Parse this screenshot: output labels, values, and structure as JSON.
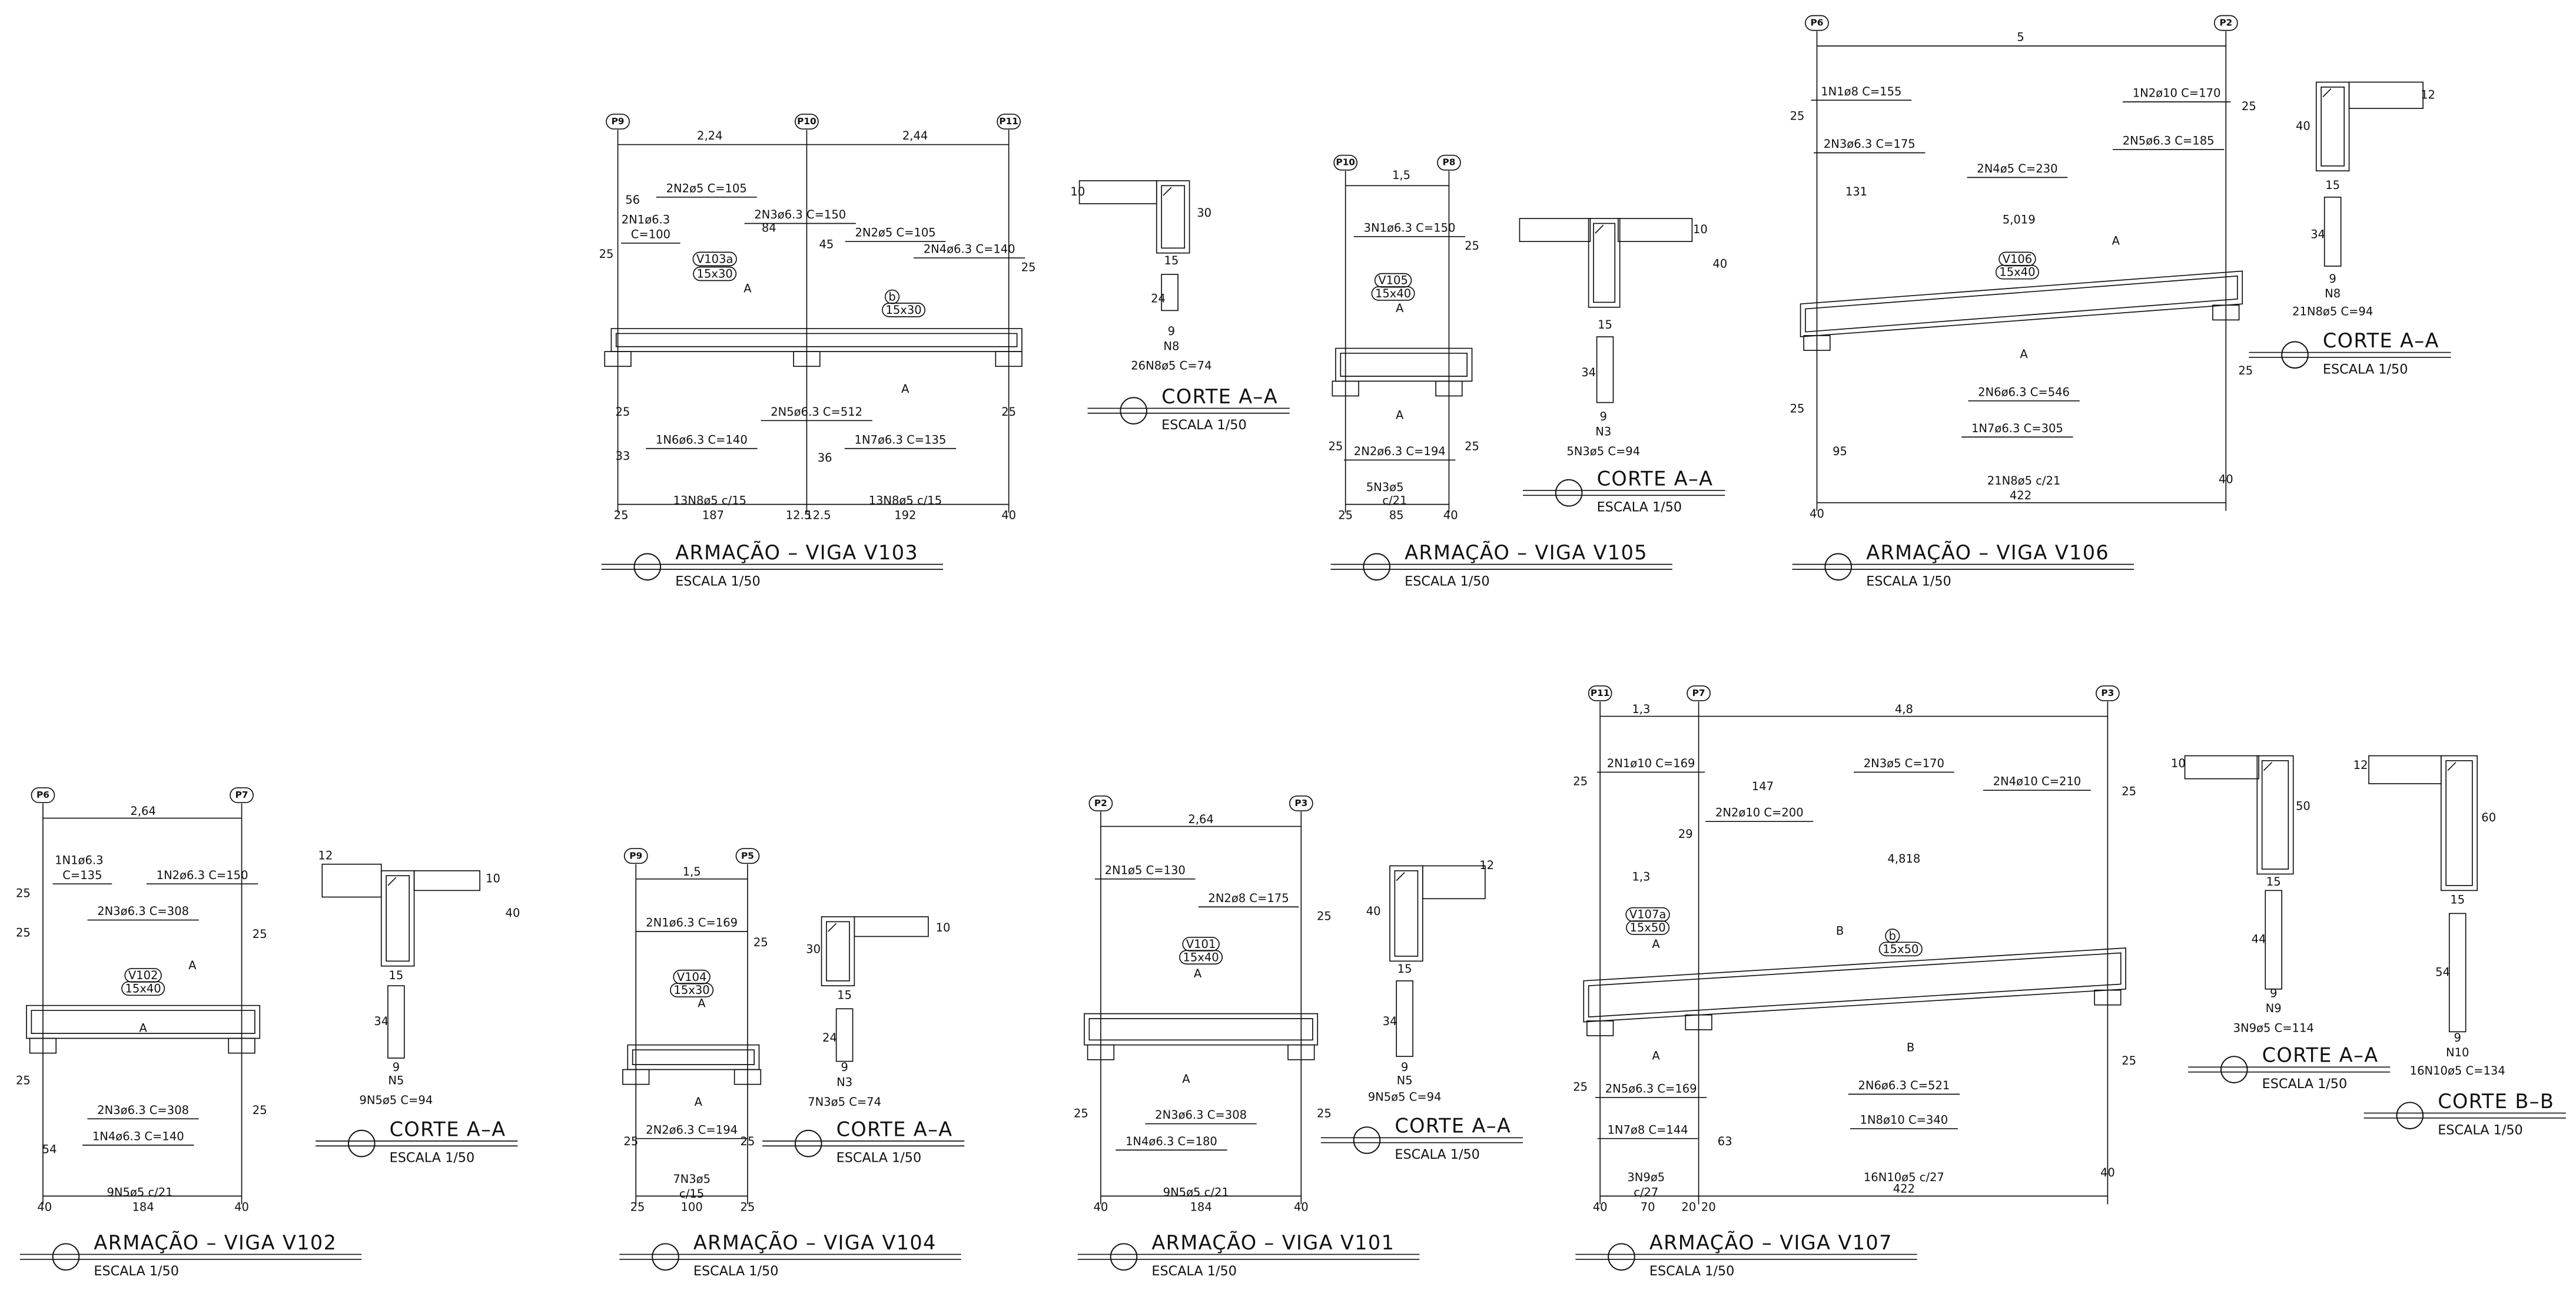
{
  "beams": [
    {
      "title": "ARMAÇÃO – VIGA V103",
      "scale": "ESCALA 1/50",
      "pillars": [
        "P9",
        "P10",
        "P11"
      ],
      "labels": [
        "2,24",
        "2,44",
        "56",
        "2N2ø5 C=105",
        "2N1ø6.3",
        "C=100",
        "2N3ø6.3 C=150",
        "84",
        "45",
        "2N2ø5 C=105",
        "2N4ø6.3 C=140",
        "25",
        "25",
        "V103a",
        "15x30",
        "A",
        "b",
        "15x30",
        "A",
        "25",
        "2N5ø6.3 C=512",
        "25",
        "1N6ø6.3 C=140",
        "1N7ø6.3 C=135",
        "33",
        "36",
        "13N8ø5 c/15",
        "13N8ø5 c/15",
        "25",
        "187",
        "12.5",
        "12.5",
        "192",
        "40"
      ]
    },
    {
      "title": "ARMAÇÃO – VIGA V105",
      "scale": "ESCALA 1/50",
      "pillars": [
        "P10",
        "P8"
      ],
      "labels": [
        "1,5",
        "3N1ø6.3 C=150",
        "25",
        "V105",
        "15x40",
        "A",
        "A",
        "2N2ø6.3 C=194",
        "25",
        "25",
        "5N3ø5",
        "c/21",
        "25",
        "85",
        "40"
      ]
    },
    {
      "title": "ARMAÇÃO – VIGA V106",
      "scale": "ESCALA 1/50",
      "pillars": [
        "P6",
        "P2"
      ],
      "labels": [
        "5",
        "1N1ø8 C=155",
        "1N2ø10 C=170",
        "25",
        "25",
        "2N3ø6.3 C=175",
        "2N5ø6.3 C=185",
        "2N4ø5 C=230",
        "131",
        "5,019",
        "A",
        "V106",
        "15x40",
        "A",
        "2N6ø6.3 C=546",
        "25",
        "25",
        "1N7ø6.3 C=305",
        "95",
        "21N8ø5 c/21",
        "40",
        "40",
        "422"
      ]
    },
    {
      "title": "ARMAÇÃO – VIGA V102",
      "scale": "ESCALA 1/50",
      "pillars": [
        "P6",
        "P7"
      ],
      "labels": [
        "2,64",
        "1N1ø6.3",
        "C=135",
        "1N2ø6.3 C=150",
        "25",
        "2N3ø6.3 C=308",
        "25",
        "25",
        "A",
        "V102",
        "15x40",
        "A",
        "25",
        "2N3ø6.3 C=308",
        "25",
        "54",
        "1N4ø6.3 C=140",
        "9N5ø5 c/21",
        "40",
        "184",
        "40"
      ]
    },
    {
      "title": "ARMAÇÃO – VIGA V104",
      "scale": "ESCALA 1/50",
      "pillars": [
        "P9",
        "P5"
      ],
      "labels": [
        "1,5",
        "2N1ø6.3 C=169",
        "25",
        "V104",
        "15x30",
        "A",
        "A",
        "2N2ø6.3 C=194",
        "25",
        "25",
        "7N3ø5",
        "c/15",
        "25",
        "100",
        "25"
      ]
    },
    {
      "title": "ARMAÇÃO – VIGA V101",
      "scale": "ESCALA 1/50",
      "pillars": [
        "P2",
        "P3"
      ],
      "labels": [
        "2,64",
        "2N1ø5 C=130",
        "2N2ø8 C=175",
        "25",
        "V101",
        "15x40",
        "A",
        "A",
        "25",
        "2N3ø6.3 C=308",
        "25",
        "1N4ø6.3 C=180",
        "9N5ø5 c/21",
        "40",
        "184",
        "40"
      ]
    },
    {
      "title": "ARMAÇÃO – VIGA V107",
      "scale": "ESCALA 1/50",
      "pillars": [
        "P11",
        "P7",
        "P3"
      ],
      "labels": [
        "1,3",
        "4,8",
        "2N1ø10 C=169",
        "147",
        "2N3ø5 C=170",
        "25",
        "2N4ø10 C=210",
        "25",
        "2N2ø10 C=200",
        "29",
        "1,3",
        "4,818",
        "V107a",
        "15x50",
        "A",
        "B",
        "b",
        "15x50",
        "B",
        "A",
        "25",
        "2N5ø6.3 C=169",
        "2N6ø6.3 C=521",
        "25",
        "1N7ø8 C=144",
        "1N8ø10 C=340",
        "63",
        "3N9ø5",
        "c/27",
        "16N10ø5 c/27",
        "40",
        "422",
        "40",
        "70",
        "20",
        "20"
      ]
    }
  ],
  "sections": [
    {
      "title": "CORTE A–A",
      "scale": "ESCALA 1/50",
      "labels": [
        "10",
        "30",
        "15",
        "24",
        "9",
        "N8",
        "26N8ø5 C=74"
      ]
    },
    {
      "title": "CORTE A–A",
      "scale": "ESCALA 1/50",
      "labels": [
        "10",
        "40",
        "15",
        "34",
        "9",
        "N3",
        "5N3ø5 C=94"
      ]
    },
    {
      "title": "CORTE A–A",
      "scale": "ESCALA 1/50",
      "labels": [
        "12",
        "40",
        "15",
        "34",
        "9",
        "N8",
        "21N8ø5 C=94"
      ]
    },
    {
      "title": "CORTE A–A",
      "scale": "ESCALA 1/50",
      "labels": [
        "12",
        "10",
        "40",
        "15",
        "34",
        "9",
        "N5",
        "9N5ø5 C=94"
      ]
    },
    {
      "title": "CORTE A–A",
      "scale": "ESCALA 1/50",
      "labels": [
        "30",
        "10",
        "15",
        "24",
        "9",
        "N3",
        "7N3ø5 C=74"
      ]
    },
    {
      "title": "CORTE A–A",
      "scale": "ESCALA 1/50",
      "labels": [
        "12",
        "40",
        "15",
        "34",
        "9",
        "N5",
        "9N5ø5 C=94"
      ]
    },
    {
      "title": "CORTE A–A",
      "scale": "ESCALA 1/50",
      "labels": [
        "10",
        "50",
        "15",
        "44",
        "9",
        "N9",
        "3N9ø5 C=114"
      ]
    },
    {
      "title": "CORTE B–B",
      "scale": "ESCALA 1/50",
      "labels": [
        "12",
        "60",
        "15",
        "54",
        "9",
        "N10",
        "16N10ø5 C=134"
      ]
    }
  ]
}
